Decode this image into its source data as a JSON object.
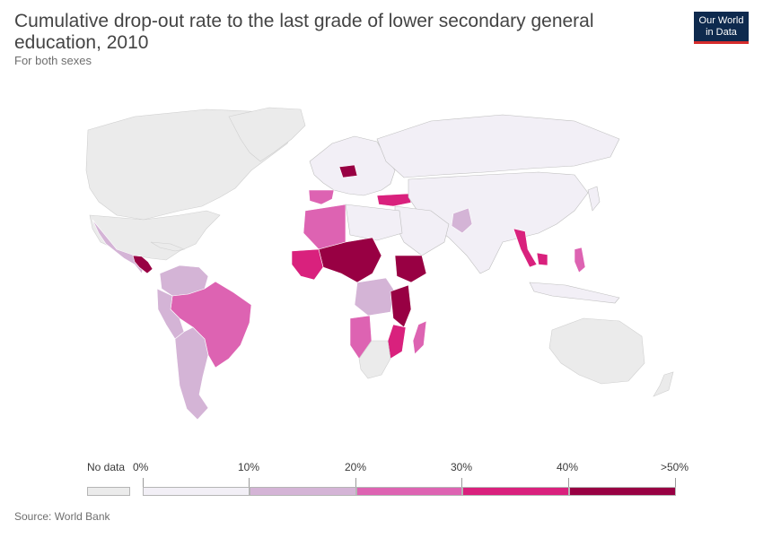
{
  "header": {
    "title": "Cumulative drop-out rate to the last grade of lower secondary general education, 2010",
    "subtitle": "For both sexes"
  },
  "logo": {
    "line1": "Our World",
    "line2": "in Data"
  },
  "legend": {
    "no_data_label": "No data",
    "bins": [
      {
        "from": "0%",
        "to": "10%",
        "color": "#f2eff6"
      },
      {
        "from": "10%",
        "to": "20%",
        "color": "#d4b4d6"
      },
      {
        "from": "20%",
        "to": "30%",
        "color": "#dd63b2"
      },
      {
        "from": "30%",
        "to": "40%",
        "color": "#d9217d"
      },
      {
        "from": "40%",
        "to": ">50%",
        "color": "#980043"
      }
    ],
    "no_data_color": "#ebebeb",
    "tick_labels": [
      "0%",
      "10%",
      "20%",
      "30%",
      "40%",
      ">50%"
    ]
  },
  "source": "Source: World Bank",
  "chart_data": {
    "type": "choropleth",
    "year": 2010,
    "unit": "%",
    "bins": [
      0,
      10,
      20,
      30,
      40,
      50
    ],
    "regions": [
      {
        "name": "Mexico",
        "bin": "10-20%"
      },
      {
        "name": "Guatemala",
        "bin": ">40%"
      },
      {
        "name": "Honduras",
        "bin": ">40%"
      },
      {
        "name": "Nicaragua",
        "bin": ">40%"
      },
      {
        "name": "Colombia",
        "bin": "10-20%"
      },
      {
        "name": "Venezuela",
        "bin": "10-20%"
      },
      {
        "name": "Ecuador",
        "bin": "10-20%"
      },
      {
        "name": "Peru",
        "bin": "10-20%"
      },
      {
        "name": "Brazil",
        "bin": "20-30%"
      },
      {
        "name": "Bolivia",
        "bin": "0-10%"
      },
      {
        "name": "Paraguay",
        "bin": "10-20%"
      },
      {
        "name": "Argentina",
        "bin": "10-20%"
      },
      {
        "name": "Chile",
        "bin": "10-20%"
      },
      {
        "name": "Uruguay",
        "bin": "20-30%"
      },
      {
        "name": "Suriname",
        "bin": "30-40%"
      },
      {
        "name": "Morocco",
        "bin": "20-30%"
      },
      {
        "name": "Algeria",
        "bin": "20-30%"
      },
      {
        "name": "Mauritania",
        "bin": "20-30%"
      },
      {
        "name": "Niger",
        "bin": ">40%"
      },
      {
        "name": "Chad",
        "bin": ">40%"
      },
      {
        "name": "Mali",
        "bin": "30-40%"
      },
      {
        "name": "Ethiopia",
        "bin": ">40%"
      },
      {
        "name": "DR Congo",
        "bin": "10-20%"
      },
      {
        "name": "Tanzania",
        "bin": ">40%"
      },
      {
        "name": "Mozambique",
        "bin": "30-40%"
      },
      {
        "name": "Madagascar",
        "bin": "30-40%"
      },
      {
        "name": "Angola",
        "bin": "20-30%"
      },
      {
        "name": "Spain",
        "bin": "20-30%"
      },
      {
        "name": "Poland",
        "bin": ">40%"
      },
      {
        "name": "Turkey",
        "bin": "30-40%"
      },
      {
        "name": "Russia",
        "bin": "0-10%"
      },
      {
        "name": "China",
        "bin": "0-10%"
      },
      {
        "name": "India",
        "bin": "0-10%"
      },
      {
        "name": "Pakistan",
        "bin": "10-20%"
      },
      {
        "name": "Myanmar",
        "bin": "30-40%"
      },
      {
        "name": "Cambodia",
        "bin": "30-40%"
      },
      {
        "name": "Philippines",
        "bin": "20-30%"
      },
      {
        "name": "United States",
        "bin": "No data"
      },
      {
        "name": "Canada",
        "bin": "No data"
      },
      {
        "name": "Australia",
        "bin": "No data"
      },
      {
        "name": "Greenland",
        "bin": "No data"
      }
    ]
  }
}
